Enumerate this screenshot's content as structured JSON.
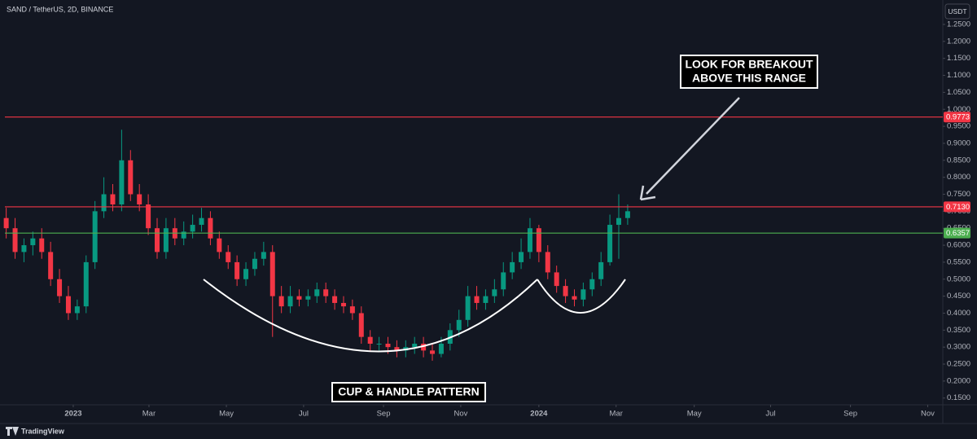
{
  "chart_data": {
    "type": "candlestick",
    "title": "SAND / TetherUS, 2D, BINANCE",
    "currency": "USDT",
    "branding": "TradingView",
    "breakout_note": [
      "LOOK FOR BREAKOUT",
      "ABOVE THIS RANGE"
    ],
    "pattern_note": "CUP & HANDLE PATTERN",
    "up_color": "#089981",
    "down_color": "#f23645",
    "x": [
      1,
      2,
      3,
      4,
      5,
      6,
      7,
      8,
      9,
      10,
      11,
      12,
      13,
      14,
      15,
      16,
      17,
      18,
      19,
      20,
      21,
      22,
      23,
      24,
      25,
      26,
      27,
      28,
      29,
      30,
      31,
      32,
      33,
      34,
      35,
      36,
      37,
      38,
      39,
      40,
      41,
      42,
      43,
      44,
      45,
      46,
      47,
      48,
      49,
      50,
      51,
      52,
      53,
      54,
      55,
      56,
      57,
      58,
      59,
      60,
      61,
      62,
      63,
      64,
      65,
      66,
      67,
      68,
      69,
      70,
      71
    ],
    "open": [
      0.68,
      0.65,
      0.58,
      0.6,
      0.62,
      0.58,
      0.5,
      0.45,
      0.4,
      0.42,
      0.55,
      0.7,
      0.75,
      0.72,
      0.85,
      0.75,
      0.72,
      0.65,
      0.58,
      0.65,
      0.62,
      0.64,
      0.66,
      0.68,
      0.62,
      0.58,
      0.55,
      0.5,
      0.53,
      0.56,
      0.58,
      0.45,
      0.42,
      0.45,
      0.44,
      0.45,
      0.47,
      0.45,
      0.43,
      0.42,
      0.4,
      0.33,
      0.31,
      0.31,
      0.3,
      0.29,
      0.3,
      0.31,
      0.29,
      0.28,
      0.31,
      0.35,
      0.38,
      0.45,
      0.43,
      0.45,
      0.47,
      0.52,
      0.55,
      0.58,
      0.65,
      0.58,
      0.52,
      0.48,
      0.45,
      0.44,
      0.47,
      0.5,
      0.55,
      0.66,
      0.68
    ],
    "high": [
      0.71,
      0.68,
      0.62,
      0.64,
      0.65,
      0.61,
      0.53,
      0.48,
      0.44,
      0.57,
      0.73,
      0.8,
      0.78,
      0.94,
      0.88,
      0.78,
      0.75,
      0.68,
      0.68,
      0.68,
      0.67,
      0.69,
      0.71,
      0.7,
      0.64,
      0.6,
      0.57,
      0.55,
      0.58,
      0.61,
      0.6,
      0.48,
      0.48,
      0.47,
      0.47,
      0.49,
      0.49,
      0.47,
      0.45,
      0.44,
      0.42,
      0.35,
      0.33,
      0.33,
      0.32,
      0.32,
      0.33,
      0.33,
      0.31,
      0.33,
      0.37,
      0.41,
      0.48,
      0.48,
      0.47,
      0.5,
      0.55,
      0.58,
      0.62,
      0.68,
      0.66,
      0.6,
      0.54,
      0.5,
      0.47,
      0.49,
      0.52,
      0.58,
      0.69,
      0.75,
      0.72
    ],
    "low": [
      0.62,
      0.56,
      0.55,
      0.57,
      0.56,
      0.48,
      0.43,
      0.38,
      0.38,
      0.4,
      0.53,
      0.68,
      0.7,
      0.7,
      0.73,
      0.7,
      0.63,
      0.56,
      0.56,
      0.6,
      0.6,
      0.62,
      0.64,
      0.6,
      0.56,
      0.53,
      0.48,
      0.48,
      0.51,
      0.54,
      0.33,
      0.4,
      0.4,
      0.42,
      0.42,
      0.43,
      0.43,
      0.41,
      0.4,
      0.38,
      0.31,
      0.29,
      0.29,
      0.28,
      0.27,
      0.27,
      0.28,
      0.27,
      0.26,
      0.27,
      0.29,
      0.33,
      0.36,
      0.41,
      0.41,
      0.43,
      0.45,
      0.5,
      0.53,
      0.56,
      0.55,
      0.5,
      0.46,
      0.43,
      0.42,
      0.42,
      0.45,
      0.48,
      0.54,
      0.56,
      0.66
    ],
    "close": [
      0.65,
      0.58,
      0.6,
      0.62,
      0.58,
      0.5,
      0.45,
      0.4,
      0.42,
      0.55,
      0.7,
      0.75,
      0.72,
      0.85,
      0.75,
      0.72,
      0.65,
      0.58,
      0.65,
      0.62,
      0.64,
      0.66,
      0.68,
      0.62,
      0.58,
      0.55,
      0.5,
      0.53,
      0.56,
      0.58,
      0.45,
      0.42,
      0.45,
      0.44,
      0.45,
      0.47,
      0.45,
      0.43,
      0.42,
      0.4,
      0.33,
      0.31,
      0.31,
      0.3,
      0.29,
      0.3,
      0.31,
      0.29,
      0.28,
      0.31,
      0.35,
      0.38,
      0.45,
      0.43,
      0.45,
      0.47,
      0.52,
      0.55,
      0.58,
      0.65,
      0.58,
      0.52,
      0.48,
      0.45,
      0.44,
      0.47,
      0.5,
      0.55,
      0.66,
      0.68,
      0.7
    ],
    "xlim": [
      0.3,
      106.5
    ],
    "xticks": [
      {
        "value": 8.55,
        "label": "2023"
      },
      {
        "value": 17.08,
        "label": "Mar"
      },
      {
        "value": 25.8,
        "label": "May"
      },
      {
        "value": 34.5,
        "label": "Jul"
      },
      {
        "value": 43.5,
        "label": "Sep"
      },
      {
        "value": 52.2,
        "label": "Nov"
      },
      {
        "value": 61.0,
        "label": "2024"
      },
      {
        "value": 69.7,
        "label": "Mar"
      },
      {
        "value": 78.5,
        "label": "May"
      },
      {
        "value": 87.1,
        "label": "Jul"
      },
      {
        "value": 96.1,
        "label": "Sep"
      },
      {
        "value": 104.8,
        "label": "Nov"
      }
    ],
    "ylim": [
      0.1062,
      1.2979
    ],
    "yticks": [
      {
        "value": 1.25,
        "label": "1.2500"
      },
      {
        "value": 1.2,
        "label": "1.2000"
      },
      {
        "value": 1.15,
        "label": "1.1500"
      },
      {
        "value": 1.1,
        "label": "1.1000"
      },
      {
        "value": 1.05,
        "label": "1.0500"
      },
      {
        "value": 1.0,
        "label": "1.0000"
      },
      {
        "value": 0.95,
        "label": "0.9500"
      },
      {
        "value": 0.9,
        "label": "0.9000"
      },
      {
        "value": 0.85,
        "label": "0.8500"
      },
      {
        "value": 0.8,
        "label": "0.8000"
      },
      {
        "value": 0.75,
        "label": "0.7500"
      },
      {
        "value": 0.7,
        "label": "0.7000"
      },
      {
        "value": 0.65,
        "label": "0.6500"
      },
      {
        "value": 0.6,
        "label": "0.6000"
      },
      {
        "value": 0.55,
        "label": "0.5500"
      },
      {
        "value": 0.5,
        "label": "0.5000"
      },
      {
        "value": 0.45,
        "label": "0.4500"
      },
      {
        "value": 0.4,
        "label": "0.4000"
      },
      {
        "value": 0.35,
        "label": "0.3500"
      },
      {
        "value": 0.3,
        "label": "0.3000"
      },
      {
        "value": 0.25,
        "label": "0.2500"
      },
      {
        "value": 0.2,
        "label": "0.2000"
      },
      {
        "value": 0.15,
        "label": "0.1500"
      }
    ],
    "levels": [
      {
        "value": 0.9773,
        "label": "0.9773",
        "color": "#f23645"
      },
      {
        "value": 0.713,
        "label": "0.7130",
        "color": "#f23645"
      },
      {
        "value": 0.6357,
        "label": "0.6357",
        "color": "#4caf50"
      }
    ]
  }
}
